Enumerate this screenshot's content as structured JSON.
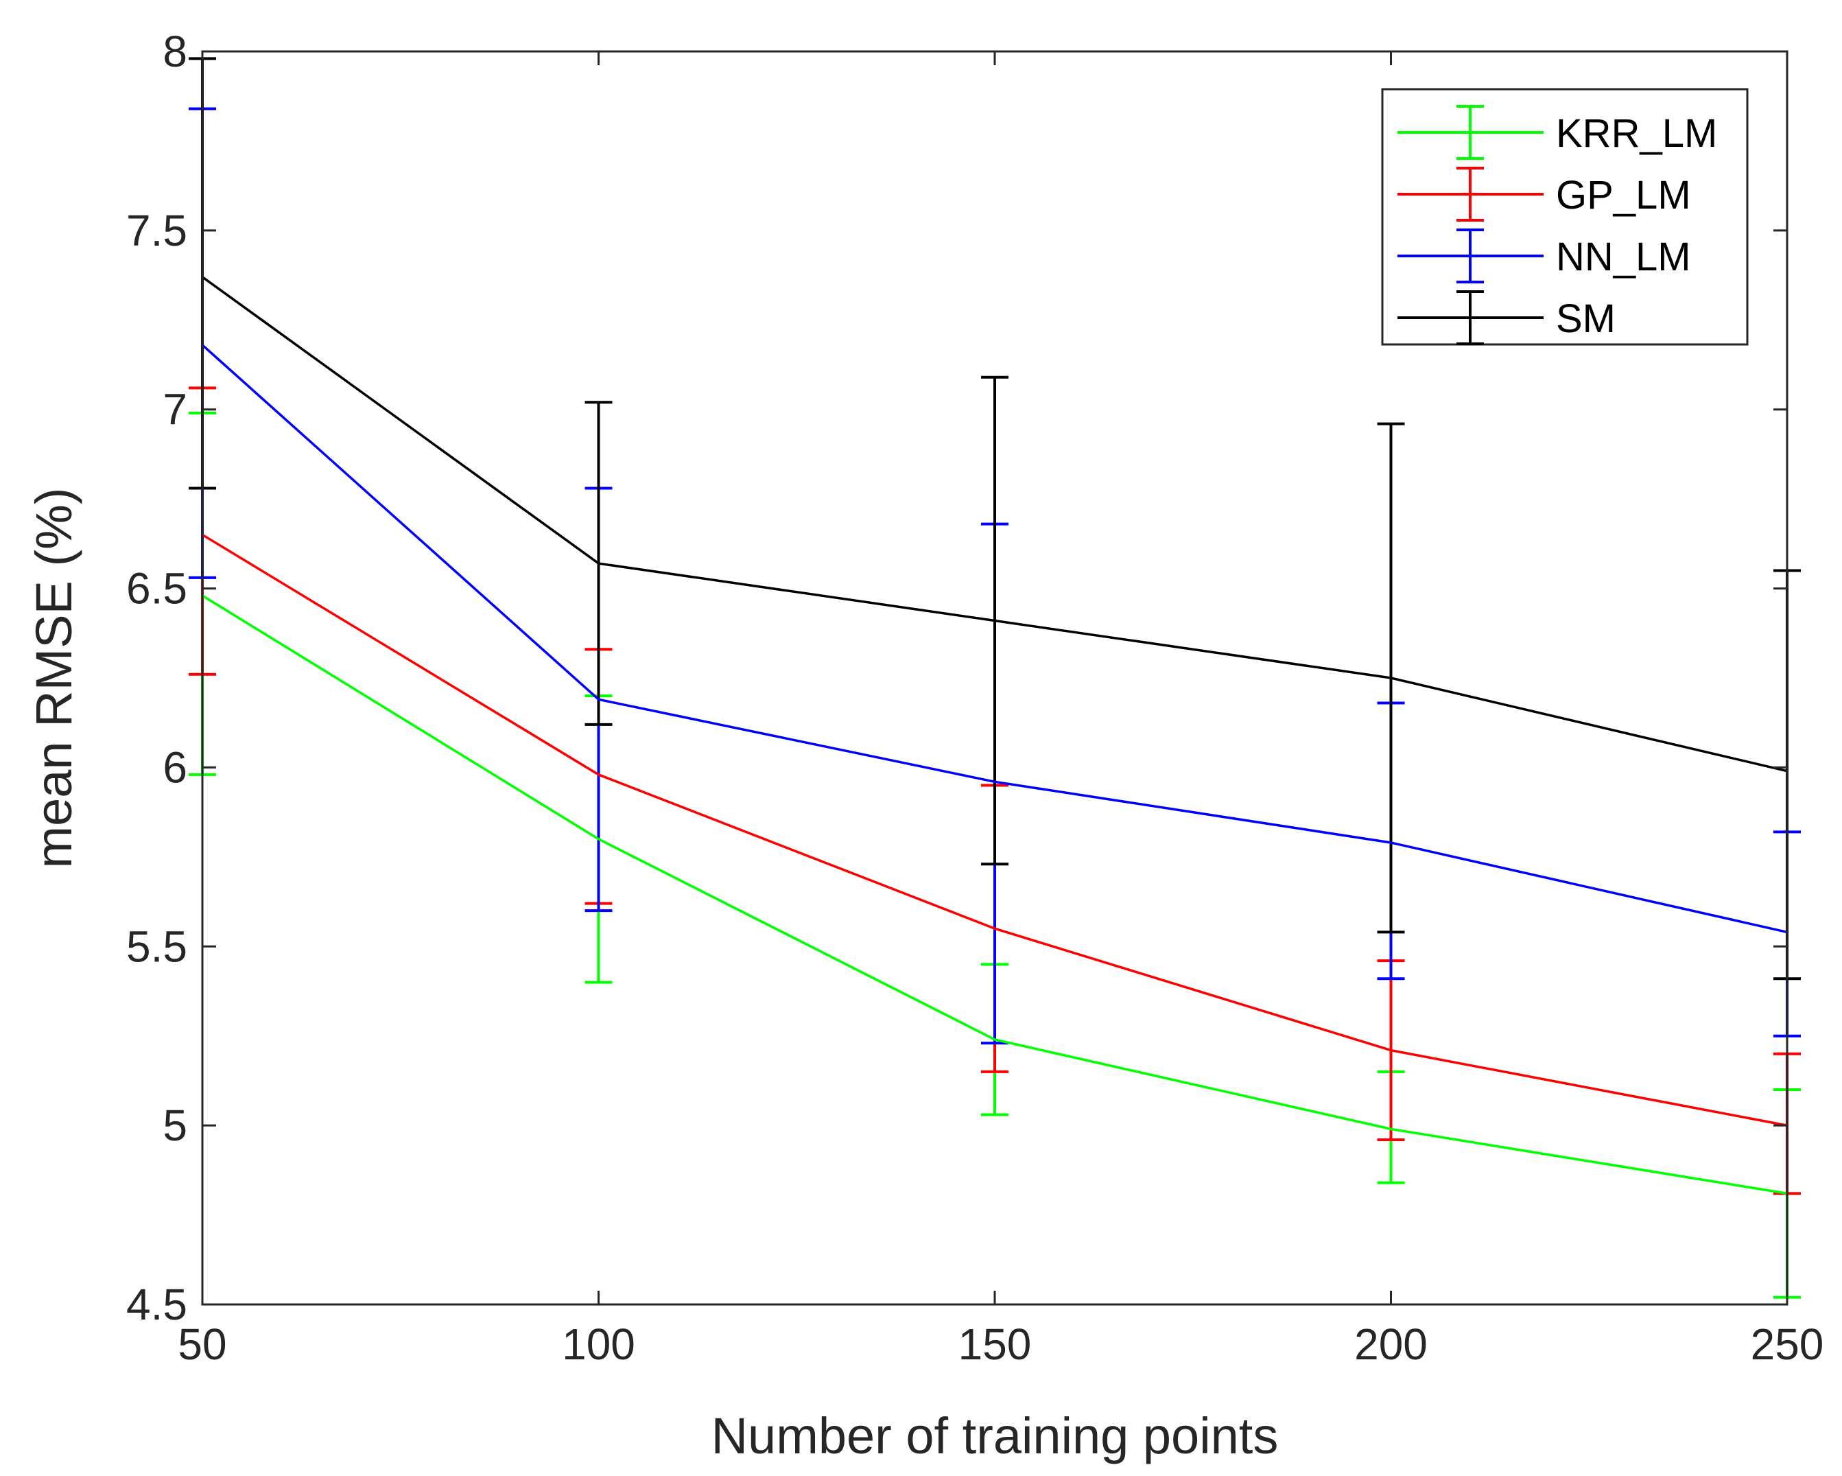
{
  "chart_data": {
    "type": "line",
    "title": "",
    "xlabel": "Number of training points",
    "ylabel": "mean RMSE (%)",
    "x": [
      50,
      100,
      150,
      200,
      250
    ],
    "xlim": [
      50,
      250
    ],
    "ylim": [
      4.5,
      8
    ],
    "xticks": [
      "50",
      "100",
      "150",
      "200",
      "250"
    ],
    "yticks": [
      "4.5",
      "5",
      "5.5",
      "6",
      "6.5",
      "7",
      "7.5",
      "8"
    ],
    "grid": false,
    "legend_position": "top-right",
    "series": [
      {
        "name": "KRR_LM",
        "color": "#00ff00",
        "values": [
          6.48,
          5.8,
          5.24,
          4.99,
          4.81
        ],
        "lower": [
          5.98,
          5.4,
          5.03,
          4.84,
          4.52
        ],
        "upper": [
          6.99,
          6.2,
          5.45,
          5.15,
          5.1
        ]
      },
      {
        "name": "GP_LM",
        "color": "#ff0000",
        "values": [
          6.65,
          5.98,
          5.55,
          5.21,
          5.0
        ],
        "lower": [
          6.26,
          5.62,
          5.15,
          4.96,
          4.81
        ],
        "upper": [
          7.06,
          6.33,
          5.95,
          5.46,
          5.2
        ]
      },
      {
        "name": "NN_LM",
        "color": "#0000ff",
        "values": [
          7.18,
          6.19,
          5.96,
          5.79,
          5.54
        ],
        "lower": [
          6.53,
          5.6,
          5.23,
          5.41,
          5.25
        ],
        "upper": [
          7.84,
          6.78,
          6.68,
          6.18,
          5.82
        ]
      },
      {
        "name": "SM",
        "color": "#000000",
        "values": [
          7.37,
          6.57,
          6.41,
          6.25,
          5.99
        ],
        "lower": [
          6.78,
          6.12,
          5.73,
          5.54,
          5.41
        ],
        "upper": [
          7.98,
          7.02,
          7.09,
          6.96,
          6.55
        ]
      }
    ]
  }
}
